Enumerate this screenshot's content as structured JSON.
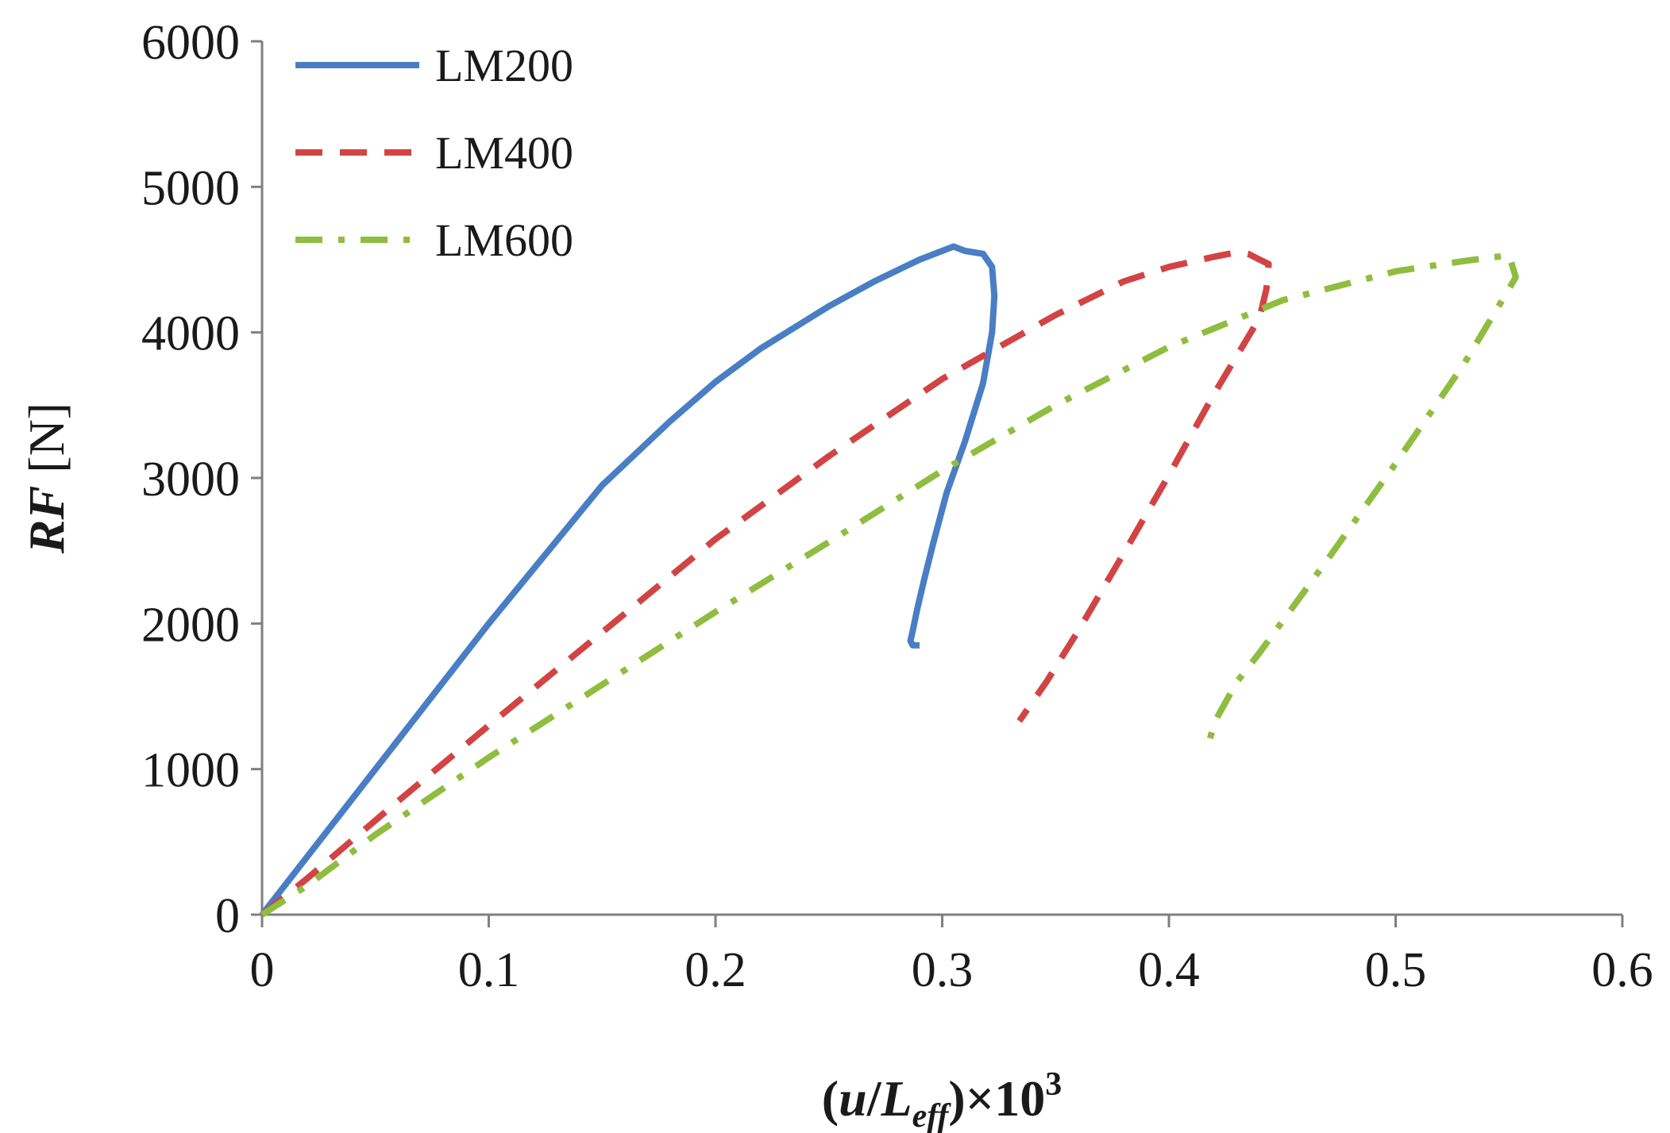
{
  "chart_data": {
    "type": "line",
    "title": "",
    "xlabel": {
      "pre": "(",
      "u": "u",
      "slash": "/",
      "L": "L",
      "sub": "eff",
      "post": ")×10",
      "sup": "3"
    },
    "ylabel": {
      "italic": "RF",
      "rest": " [N]"
    },
    "xlim": [
      0,
      0.6
    ],
    "ylim": [
      0,
      6000
    ],
    "xticks": [
      0,
      0.1,
      0.2,
      0.3,
      0.4,
      0.5,
      0.6
    ],
    "xtick_labels": [
      "0",
      "0.1",
      "0.2",
      "0.3",
      "0.4",
      "0.5",
      "0.6"
    ],
    "yticks": [
      0,
      1000,
      2000,
      3000,
      4000,
      5000,
      6000
    ],
    "ytick_labels": [
      "0",
      "1000",
      "2000",
      "3000",
      "4000",
      "5000",
      "6000"
    ],
    "grid": false,
    "legend_position": "top-left",
    "series": [
      {
        "name": "LM200",
        "color": "#4a7ec4",
        "dash": "solid",
        "x": [
          0,
          0.02,
          0.05,
          0.08,
          0.1,
          0.12,
          0.15,
          0.18,
          0.2,
          0.22,
          0.25,
          0.27,
          0.29,
          0.3,
          0.305,
          0.31,
          0.318,
          0.322,
          0.323,
          0.322,
          0.318,
          0.31,
          0.302,
          0.296,
          0.292,
          0.289,
          0.287,
          0.286,
          0.287,
          0.29
        ],
        "y": [
          0,
          400,
          1000,
          1600,
          2000,
          2380,
          2950,
          3390,
          3660,
          3890,
          4180,
          4350,
          4500,
          4560,
          4590,
          4560,
          4540,
          4450,
          4250,
          4000,
          3650,
          3250,
          2900,
          2550,
          2300,
          2100,
          1950,
          1880,
          1850,
          1850
        ]
      },
      {
        "name": "LM400",
        "color": "#d24444",
        "dash": "dashed",
        "x": [
          0,
          0.02,
          0.06,
          0.1,
          0.15,
          0.2,
          0.25,
          0.3,
          0.35,
          0.38,
          0.4,
          0.42,
          0.43,
          0.435,
          0.44,
          0.444,
          0.443,
          0.44,
          0.42,
          0.4,
          0.38,
          0.36,
          0.346,
          0.334
        ],
        "y": [
          0,
          250,
          780,
          1300,
          1940,
          2580,
          3150,
          3680,
          4120,
          4350,
          4450,
          4520,
          4550,
          4540,
          4500,
          4470,
          4300,
          4100,
          3580,
          3020,
          2480,
          1950,
          1600,
          1330
        ]
      },
      {
        "name": "LM600",
        "color": "#8fbd3f",
        "dash": "dashdot",
        "x": [
          0,
          0.02,
          0.05,
          0.1,
          0.15,
          0.2,
          0.25,
          0.3,
          0.35,
          0.4,
          0.45,
          0.5,
          0.53,
          0.55,
          0.553,
          0.55,
          0.53,
          0.5,
          0.47,
          0.44,
          0.43,
          0.42,
          0.418
        ],
        "y": [
          0,
          200,
          550,
          1080,
          1580,
          2080,
          2560,
          3050,
          3500,
          3900,
          4220,
          4420,
          4490,
          4530,
          4380,
          4300,
          3780,
          3100,
          2440,
          1800,
          1600,
          1320,
          1200
        ]
      }
    ]
  }
}
